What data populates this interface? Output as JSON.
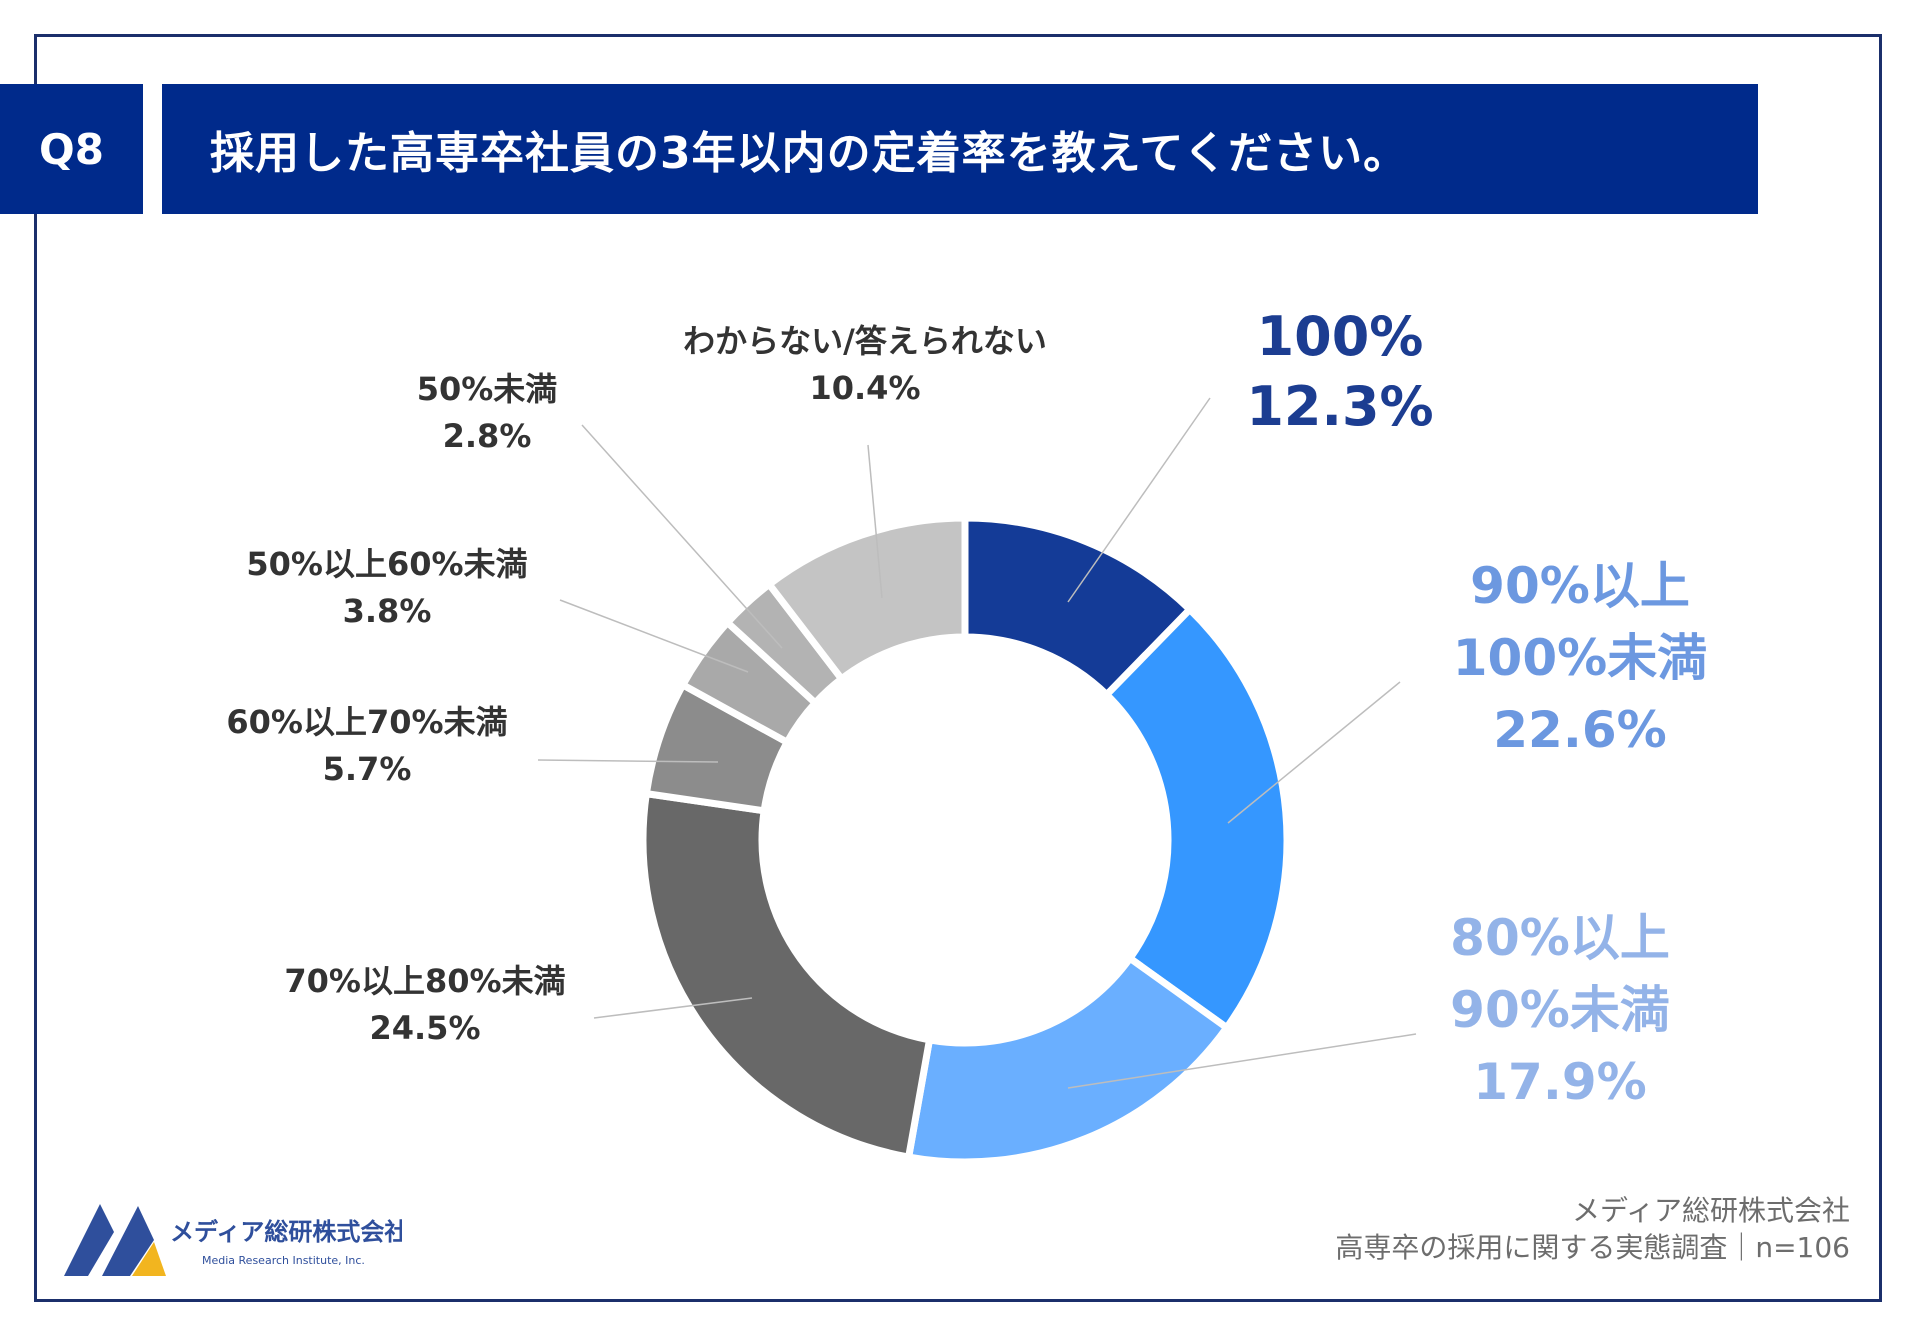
{
  "header": {
    "question_no": "Q8",
    "title": "採用した高専卒社員の3年以内の定着率を教えてください。"
  },
  "chart_data": {
    "type": "pie",
    "subtype": "donut",
    "title": "採用した高専卒社員の3年以内の定着率を教えてください。",
    "slices": [
      {
        "label": [
          "100%"
        ],
        "value": 12.3,
        "value_label": "12.3%",
        "color": "#143b97",
        "label_color": "#1c3d91"
      },
      {
        "label": [
          "90%以上",
          "100%未満"
        ],
        "value": 22.6,
        "value_label": "22.6%",
        "color": "#3597ff",
        "label_color": "#6c98e0"
      },
      {
        "label": [
          "80%以上",
          "90%未満"
        ],
        "value": 17.9,
        "value_label": "17.9%",
        "color": "#6aafff",
        "label_color": "#93b3e8"
      },
      {
        "label": [
          "70%以上80%未満"
        ],
        "value": 24.5,
        "value_label": "24.5%",
        "color": "#686868",
        "label_color": "#333333"
      },
      {
        "label": [
          "60%以上70%未満"
        ],
        "value": 5.7,
        "value_label": "5.7%",
        "color": "#8c8c8c",
        "label_color": "#333333"
      },
      {
        "label": [
          "50%以上60%未満"
        ],
        "value": 3.8,
        "value_label": "3.8%",
        "color": "#a9a9a9",
        "label_color": "#333333"
      },
      {
        "label": [
          "50%未満"
        ],
        "value": 2.8,
        "value_label": "2.8%",
        "color": "#b3b3b3",
        "label_color": "#333333"
      },
      {
        "label": [
          "わからない/答えられない"
        ],
        "value": 10.4,
        "value_label": "10.4%",
        "color": "#c4c4c4",
        "label_color": "#333333"
      }
    ]
  },
  "footer": {
    "line1": "メディア総研株式会社",
    "line2": "高専卒の採用に関する実態調査｜n=106"
  },
  "logo": {
    "name_jp": "メディア総研株式会社",
    "name_en": "Media Research Institute, Inc.",
    "colors": {
      "blue": "#2f4f9c",
      "yellow": "#f2b51f"
    }
  }
}
